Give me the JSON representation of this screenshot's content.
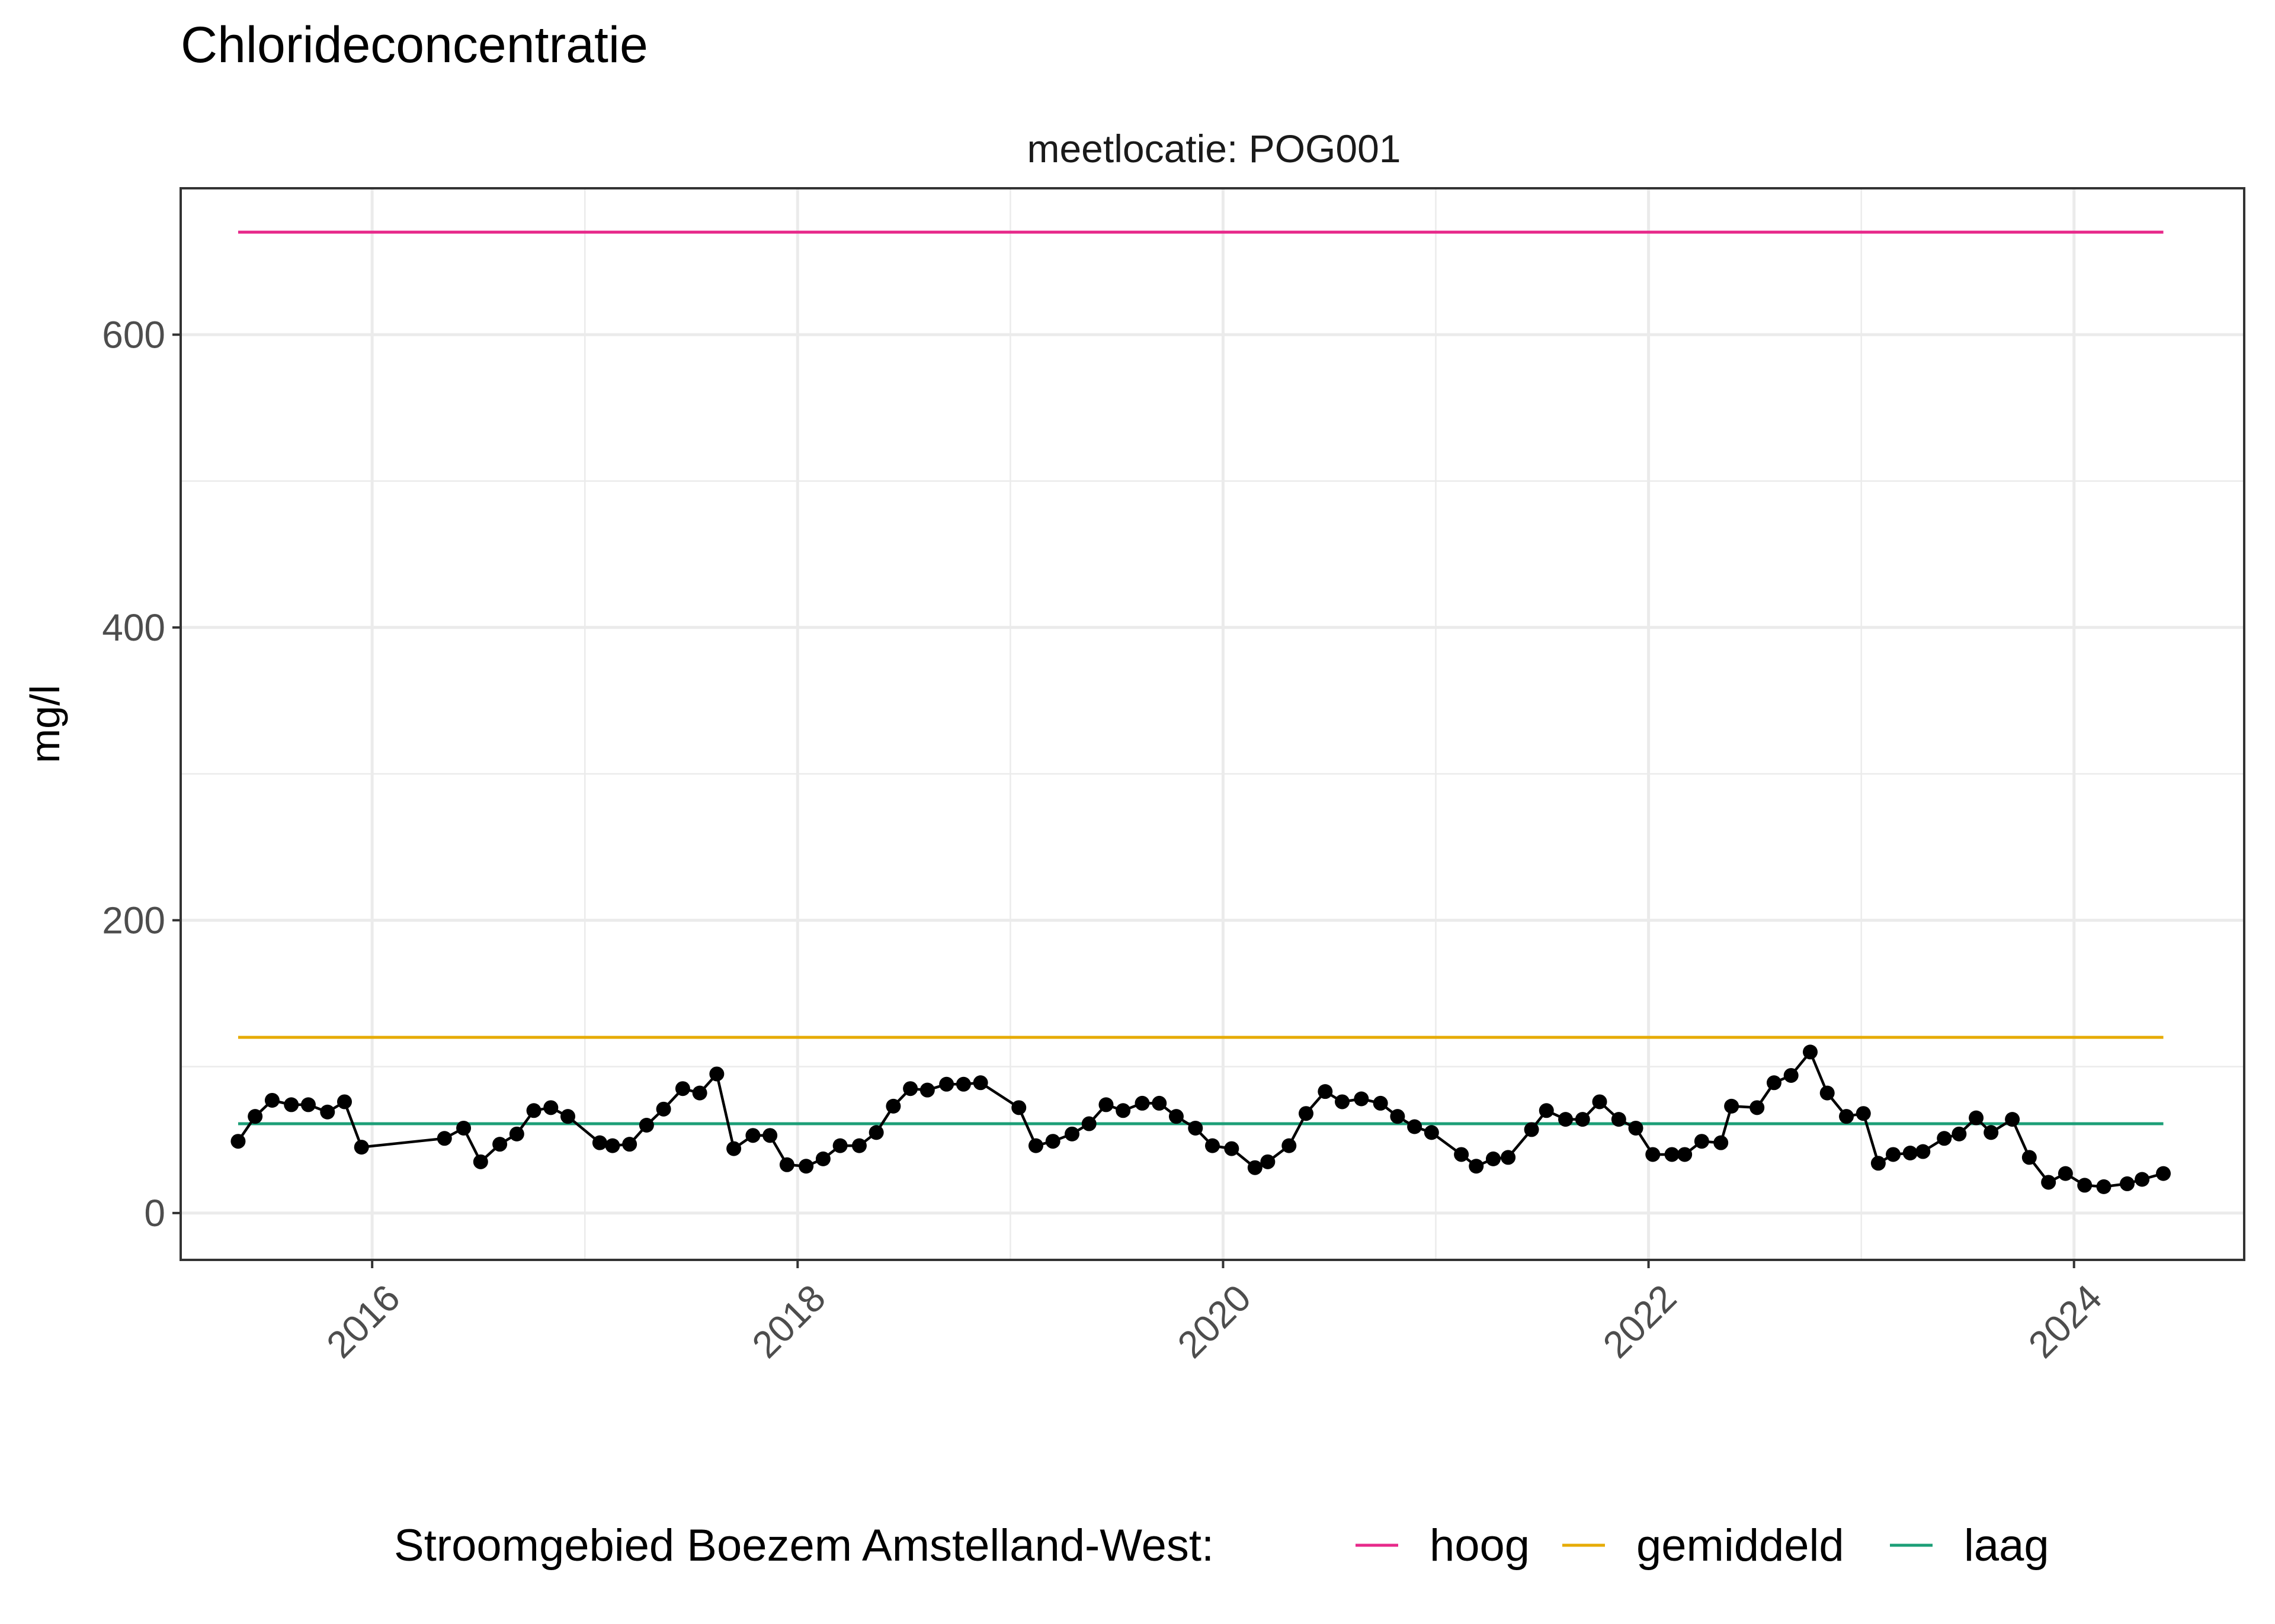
{
  "chart_data": {
    "type": "line",
    "title": "Chlorideconcentratie",
    "facet_label": "meetlocatie: POG001",
    "xlabel": "",
    "ylabel": "mg/l",
    "xlim": [
      2015.1,
      2024.8
    ],
    "ylim": [
      -32,
      700
    ],
    "x_ticks": [
      2016,
      2018,
      2020,
      2022,
      2024
    ],
    "x_tick_labels": [
      "2016",
      "2018",
      "2020",
      "2022",
      "2024"
    ],
    "y_ticks": [
      0,
      200,
      400,
      600
    ],
    "y_tick_labels": [
      "0",
      "200",
      "400",
      "600"
    ],
    "grid": true,
    "legend": {
      "position": "bottom",
      "title": "Stroomgebied Boezem Amstelland-West:",
      "entries": [
        {
          "label": "hoog",
          "color": "#E7298A"
        },
        {
          "label": "gemiddeld",
          "color": "#E6AB02"
        },
        {
          "label": "laag",
          "color": "#1B9E77"
        }
      ]
    },
    "reference_lines": [
      {
        "name": "hoog",
        "value": 670,
        "color": "#E7298A",
        "x_range": [
          2015.37,
          2024.42
        ]
      },
      {
        "name": "gemiddeld",
        "value": 120,
        "color": "#E6AB02",
        "x_range": [
          2015.37,
          2024.42
        ]
      },
      {
        "name": "laag",
        "value": 61,
        "color": "#1B9E77",
        "x_range": [
          2015.37,
          2024.42
        ]
      }
    ],
    "series": [
      {
        "color": "#000000",
        "x": [
          2015.37,
          2015.45,
          2015.53,
          2015.62,
          2015.7,
          2015.79,
          2015.87,
          2015.95,
          2016.34,
          2016.43,
          2016.51,
          2016.6,
          2016.68,
          2016.76,
          2016.84,
          2016.92,
          2017.07,
          2017.13,
          2017.21,
          2017.29,
          2017.37,
          2017.46,
          2017.54,
          2017.62,
          2017.7,
          2017.79,
          2017.87,
          2017.95,
          2018.04,
          2018.12,
          2018.2,
          2018.29,
          2018.37,
          2018.45,
          2018.53,
          2018.61,
          2018.7,
          2018.78,
          2018.86,
          2019.04,
          2019.12,
          2019.2,
          2019.29,
          2019.37,
          2019.45,
          2019.53,
          2019.62,
          2019.7,
          2019.78,
          2019.87,
          2019.95,
          2020.04,
          2020.15,
          2020.21,
          2020.31,
          2020.39,
          2020.48,
          2020.56,
          2020.65,
          2020.74,
          2020.82,
          2020.9,
          2020.98,
          2021.12,
          2021.19,
          2021.27,
          2021.34,
          2021.45,
          2021.52,
          2021.61,
          2021.69,
          2021.77,
          2021.86,
          2021.94,
          2022.02,
          2022.11,
          2022.17,
          2022.25,
          2022.34,
          2022.39,
          2022.51,
          2022.59,
          2022.67,
          2022.76,
          2022.84,
          2022.93,
          2023.01,
          2023.08,
          2023.15,
          2023.23,
          2023.29,
          2023.39,
          2023.46,
          2023.54,
          2023.61,
          2023.71,
          2023.79,
          2023.88,
          2023.96,
          2024.05,
          2024.14,
          2024.25,
          2024.32,
          2024.42
        ],
        "y": [
          49,
          66,
          77,
          74,
          74,
          69,
          76,
          45,
          51,
          58,
          35,
          47,
          54,
          70,
          72,
          66,
          48,
          46,
          47,
          60,
          71,
          85,
          82,
          95,
          44,
          53,
          53,
          33,
          32,
          37,
          46,
          46,
          55,
          73,
          85,
          84,
          88,
          88,
          89,
          72,
          46,
          49,
          54,
          61,
          74,
          70,
          75,
          75,
          66,
          58,
          46,
          44,
          31,
          35,
          46,
          68,
          83,
          76,
          78,
          75,
          66,
          59,
          55,
          40,
          32,
          37,
          38,
          57,
          70,
          64,
          64,
          76,
          64,
          58,
          40,
          40,
          40,
          49,
          48,
          73,
          72,
          89,
          94,
          110,
          82,
          66,
          68,
          34,
          40,
          41,
          42,
          51,
          54,
          65,
          55,
          64,
          38,
          21,
          27,
          19,
          18,
          20,
          23,
          27
        ]
      }
    ]
  }
}
